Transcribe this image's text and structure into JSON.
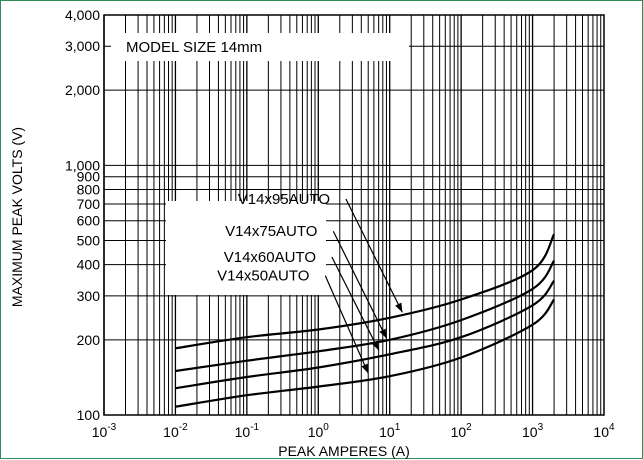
{
  "chart_data": {
    "type": "line",
    "xlabel": "PEAK AMPERES (A)",
    "ylabel": "MAXIMUM PEAK VOLTS (V)",
    "xscale": "log",
    "yscale": "log",
    "xlim": [
      0.001,
      10000
    ],
    "ylim": [
      100,
      4000
    ],
    "grid": true,
    "annotation": "MODEL SIZE 14mm",
    "x_ticks": [
      {
        "base": "10",
        "exp": "-3",
        "value": 0.001
      },
      {
        "base": "10",
        "exp": "-2",
        "value": 0.01
      },
      {
        "base": "10",
        "exp": "-1",
        "value": 0.1
      },
      {
        "base": "10",
        "exp": "0",
        "value": 1
      },
      {
        "base": "10",
        "exp": "1",
        "value": 10
      },
      {
        "base": "10",
        "exp": "2",
        "value": 100
      },
      {
        "base": "10",
        "exp": "3",
        "value": 1000
      },
      {
        "base": "10",
        "exp": "4",
        "value": 10000
      }
    ],
    "y_ticks": [
      {
        "label": "100",
        "value": 100
      },
      {
        "label": "200",
        "value": 200
      },
      {
        "label": "300",
        "value": 300
      },
      {
        "label": "400",
        "value": 400
      },
      {
        "label": "500",
        "value": 500
      },
      {
        "label": "600",
        "value": 600
      },
      {
        "label": "700",
        "value": 700
      },
      {
        "label": "800",
        "value": 800
      },
      {
        "label": "900",
        "value": 900
      },
      {
        "label": "1,000",
        "value": 1000
      },
      {
        "label": "2,000",
        "value": 2000
      },
      {
        "label": "3,000",
        "value": 3000
      },
      {
        "label": "4,000",
        "value": 4000
      }
    ],
    "series": [
      {
        "name": "V14x95AUTO",
        "points": [
          [
            0.01,
            185
          ],
          [
            0.1,
            205
          ],
          [
            1,
            220
          ],
          [
            10,
            245
          ],
          [
            100,
            290
          ],
          [
            1000,
            380
          ],
          [
            2000,
            530
          ]
        ],
        "label_at": [
          0.33,
          700
        ],
        "arrow_to": [
          15,
          258
        ]
      },
      {
        "name": "V14x75AUTO",
        "points": [
          [
            0.01,
            150
          ],
          [
            0.1,
            165
          ],
          [
            1,
            180
          ],
          [
            10,
            200
          ],
          [
            100,
            240
          ],
          [
            1000,
            320
          ],
          [
            2000,
            415
          ]
        ],
        "label_at": [
          0.22,
          520
        ],
        "arrow_to": [
          9,
          203
        ]
      },
      {
        "name": "V14x60AUTO",
        "points": [
          [
            0.01,
            128
          ],
          [
            0.1,
            142
          ],
          [
            1,
            155
          ],
          [
            10,
            175
          ],
          [
            100,
            205
          ],
          [
            1000,
            275
          ],
          [
            2000,
            345
          ]
        ],
        "label_at": [
          0.21,
          410
        ],
        "arrow_to": [
          7,
          182
        ]
      },
      {
        "name": "V14x50AUTO",
        "points": [
          [
            0.01,
            108
          ],
          [
            0.1,
            120
          ],
          [
            1,
            130
          ],
          [
            10,
            143
          ],
          [
            100,
            170
          ],
          [
            1000,
            230
          ],
          [
            2000,
            290
          ]
        ],
        "label_at": [
          0.17,
          345
        ],
        "arrow_to": [
          5,
          147
        ]
      }
    ]
  }
}
